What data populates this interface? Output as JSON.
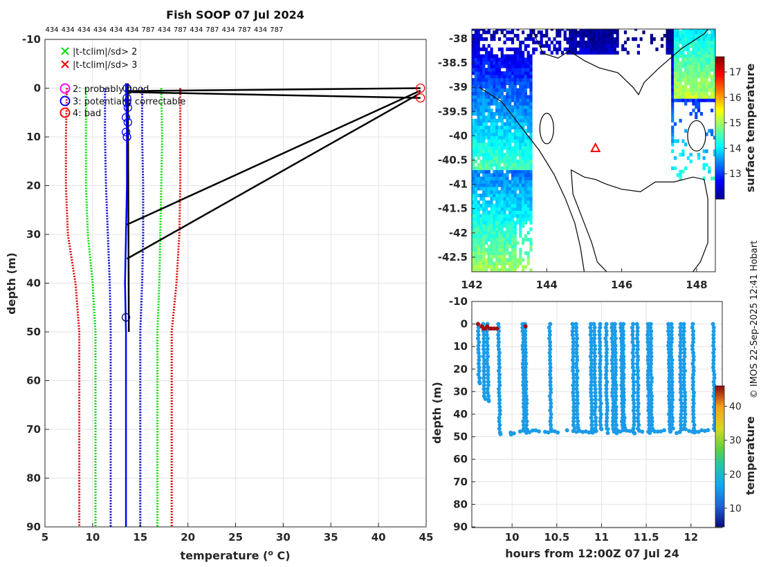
{
  "chart_data": [
    {
      "type": "line",
      "title": "Fish SOOP 07 Jul 2024",
      "xlabel": "temperature (",
      "xlabel_sup": "o",
      "xlabel_end": " C)",
      "ylabel": "depth (m)",
      "xlim": [
        5,
        45
      ],
      "ylim": [
        -10,
        90
      ],
      "xticks": [
        5,
        10,
        15,
        20,
        25,
        30,
        35,
        40,
        45
      ],
      "yticks": [
        -10,
        0,
        10,
        20,
        30,
        40,
        50,
        60,
        70,
        80,
        90
      ],
      "top_ids": [
        "434",
        "434",
        "434",
        "434",
        "434",
        "434",
        "787",
        "434",
        "787",
        "434",
        "787",
        "434",
        "787",
        "434",
        "787"
      ],
      "legend": [
        {
          "label": "|t-tclim|/sd> 2",
          "color": "#00dd00",
          "marker": "x"
        },
        {
          "label": "|t-tclim|/sd> 3",
          "color": "#ff0000",
          "marker": "x"
        },
        {
          "label": "2: probably good",
          "color": "#ff00ff",
          "marker": "o"
        },
        {
          "label": "3: potentially correctable",
          "color": "#0000ff",
          "marker": "o"
        },
        {
          "label": "4: bad",
          "color": "#ff0000",
          "marker": "o"
        }
      ],
      "series": [
        {
          "name": "clim -3sd",
          "color": "#dd0000",
          "points": [
            [
              7.3,
              0
            ],
            [
              7.2,
              10
            ],
            [
              7.2,
              20
            ],
            [
              7.4,
              30
            ],
            [
              8.2,
              40
            ],
            [
              8.6,
              50
            ],
            [
              8.6,
              60
            ],
            [
              8.6,
              70
            ],
            [
              8.6,
              80
            ],
            [
              8.6,
              90
            ]
          ]
        },
        {
          "name": "clim -2sd",
          "color": "#00dd00",
          "points": [
            [
              9.3,
              0
            ],
            [
              9.3,
              10
            ],
            [
              9.3,
              20
            ],
            [
              9.5,
              30
            ],
            [
              10.0,
              40
            ],
            [
              10.3,
              50
            ],
            [
              10.3,
              60
            ],
            [
              10.3,
              70
            ],
            [
              10.3,
              80
            ],
            [
              10.3,
              90
            ]
          ]
        },
        {
          "name": "clim -1sd",
          "color": "#0000cc",
          "points": [
            [
              11.3,
              0
            ],
            [
              11.3,
              10
            ],
            [
              11.4,
              20
            ],
            [
              11.6,
              30
            ],
            [
              11.8,
              40
            ],
            [
              11.9,
              50
            ],
            [
              11.9,
              60
            ],
            [
              11.9,
              70
            ],
            [
              11.9,
              80
            ],
            [
              11.9,
              90
            ]
          ]
        },
        {
          "name": "clim +1sd",
          "color": "#0000cc",
          "points": [
            [
              15.2,
              0
            ],
            [
              15.2,
              10
            ],
            [
              15.3,
              20
            ],
            [
              15.3,
              30
            ],
            [
              15.2,
              40
            ],
            [
              15.0,
              50
            ],
            [
              15.0,
              60
            ],
            [
              15.0,
              70
            ],
            [
              15.0,
              80
            ],
            [
              15.0,
              90
            ]
          ]
        },
        {
          "name": "clim +2sd",
          "color": "#00dd00",
          "points": [
            [
              17.2,
              0
            ],
            [
              17.3,
              10
            ],
            [
              17.2,
              20
            ],
            [
              17.1,
              30
            ],
            [
              17.0,
              40
            ],
            [
              16.8,
              50
            ],
            [
              16.8,
              60
            ],
            [
              16.8,
              70
            ],
            [
              16.8,
              80
            ],
            [
              16.8,
              90
            ]
          ]
        },
        {
          "name": "clim +3sd",
          "color": "#dd0000",
          "points": [
            [
              19.2,
              0
            ],
            [
              19.2,
              10
            ],
            [
              19.2,
              20
            ],
            [
              19.1,
              30
            ],
            [
              18.8,
              40
            ],
            [
              18.3,
              50
            ],
            [
              18.3,
              60
            ],
            [
              18.3,
              70
            ],
            [
              18.3,
              80
            ],
            [
              18.3,
              90
            ]
          ]
        },
        {
          "name": "profiles",
          "color": "#0000ff",
          "width": 2.5,
          "points": [
            [
              13.5,
              -1
            ],
            [
              13.6,
              10
            ],
            [
              13.6,
              20
            ],
            [
              13.5,
              30
            ],
            [
              13.4,
              40
            ],
            [
              13.5,
              50
            ],
            [
              13.5,
              60
            ],
            [
              13.5,
              70
            ],
            [
              13.5,
              80
            ],
            [
              13.5,
              90
            ]
          ]
        },
        {
          "name": "profile spikes",
          "color": "#000000",
          "width": 2.5,
          "segments": [
            [
              [
                13.6,
                0.8
              ],
              [
                44.4,
                2
              ]
            ],
            [
              [
                13.6,
                0.6
              ],
              [
                44.4,
                0
              ]
            ],
            [
              [
                13.6,
                28
              ],
              [
                44.4,
                0.5
              ]
            ],
            [
              [
                13.6,
                35
              ],
              [
                44.4,
                1
              ]
            ],
            [
              [
                13.7,
                -1
              ],
              [
                13.8,
                50
              ]
            ]
          ]
        }
      ],
      "flag_points": [
        {
          "x": 44.4,
          "y": 0,
          "flag": 4
        },
        {
          "x": 44.4,
          "y": 2,
          "flag": 4
        },
        {
          "x": 13.6,
          "y": 0,
          "flag": 3
        },
        {
          "x": 13.6,
          "y": 2,
          "flag": 3
        },
        {
          "x": 13.6,
          "y": 3,
          "flag": 3
        },
        {
          "x": 13.7,
          "y": 4,
          "flag": 3
        },
        {
          "x": 13.5,
          "y": 6,
          "flag": 3
        },
        {
          "x": 13.7,
          "y": 7,
          "flag": 3
        },
        {
          "x": 13.5,
          "y": 9,
          "flag": 3
        },
        {
          "x": 13.6,
          "y": 10,
          "flag": 3
        },
        {
          "x": 13.5,
          "y": 47,
          "flag": 3
        }
      ]
    },
    {
      "type": "heatmap",
      "title": "",
      "xlim": [
        142,
        148.5
      ],
      "ylim": [
        -42.8,
        -37.8
      ],
      "xticks": [
        142,
        144,
        146,
        148
      ],
      "yticks": [
        -38,
        -38.5,
        -39,
        -39.5,
        -40,
        -40.5,
        -41,
        -41.5,
        -42,
        -42.5
      ],
      "colorbar_label": "surface temperature",
      "colorbar_ticks": [
        13,
        14,
        15,
        16,
        17
      ],
      "colorbar_range": [
        12,
        17.6
      ],
      "marker": {
        "x": 145.3,
        "y": -40.25,
        "shape": "triangle",
        "color": "#ff0000"
      }
    },
    {
      "type": "scatter",
      "xlabel": "hours from 12:00Z 07 Jul 24",
      "ylabel": "depth (m)",
      "xlim": [
        9.55,
        12.35
      ],
      "ylim": [
        -10,
        90
      ],
      "xticks": [
        10,
        10.5,
        11,
        11.5,
        12
      ],
      "yticks": [
        -10,
        0,
        10,
        20,
        30,
        40,
        50,
        60,
        70,
        80,
        90
      ],
      "colorbar_label": "temperature",
      "colorbar_ticks": [
        10,
        20,
        30,
        40
      ],
      "colorbar_range": [
        4.5,
        46
      ],
      "casts": [
        9.62,
        9.68,
        9.72,
        9.85,
        10.12,
        10.15,
        10.42,
        10.68,
        10.72,
        10.88,
        10.92,
        10.98,
        11.05,
        11.12,
        11.15,
        11.22,
        11.24,
        11.35,
        11.4,
        11.52,
        11.55,
        11.75,
        11.78,
        11.88,
        11.92,
        12.02,
        12.25
      ],
      "bad_points": [
        [
          9.62,
          0
        ],
        [
          9.66,
          1
        ],
        [
          9.68,
          2
        ],
        [
          9.7,
          2
        ],
        [
          9.72,
          1
        ],
        [
          9.75,
          2
        ],
        [
          9.77,
          2
        ],
        [
          9.8,
          2
        ],
        [
          9.83,
          2
        ],
        [
          10.15,
          1
        ]
      ]
    }
  ],
  "credit": "© IMOS 22-Sep-2025 12:41 Hobart"
}
